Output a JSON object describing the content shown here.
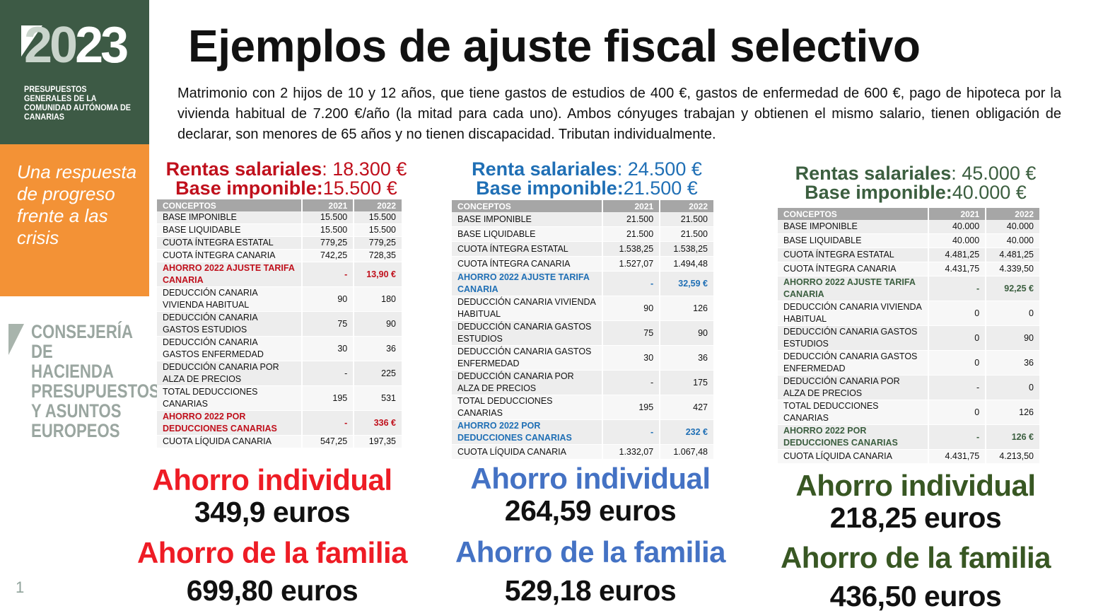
{
  "sidebar": {
    "logo_year_a": "20",
    "logo_year_b": "23",
    "logo_text": "PRESUPUESTOS GENERALES DE LA COMUNIDAD AUTÓNOMA DE CANARIAS",
    "tagline": "Una respuesta de progreso frente a las crisis",
    "department": "CONSEJERÍA DE HACIENDA PRESUPUESTOS Y ASUNTOS EUROPEOS",
    "page_number": "1"
  },
  "title": "Ejemplos de ajuste fiscal selectivo",
  "intro": "Matrimonio con 2 hijos de 10 y 12 años, que tiene gastos de estudios de 400 €, gastos de enfermedad de 600 €, pago de hipoteca por la vivienda habitual de 7.200 €/año (la mitad para cada uno). Ambos cónyuges trabajan y obtienen el mismo salario, tienen obligación de declarar, son menores de 65 años y no tienen discapacidad. Tributan individualmente.",
  "colors": {
    "red": "#c0101c",
    "bright_red": "#ee1c25",
    "blue": "#1f6fb5",
    "mid_blue": "#4472c4",
    "green": "#3b5e3f",
    "dark_green": "#385723"
  },
  "columns": [
    {
      "rent_label": "Rentas salariales",
      "rent_value": ": 18.300 €",
      "base_label": "Base imponible:",
      "base_value": "15.500 €",
      "headers": [
        "CONCEPTOS",
        "2021",
        "2022"
      ],
      "rows": [
        [
          "BASE IMPONIBLE",
          "15.500",
          "15.500"
        ],
        [
          "BASE LIQUIDABLE",
          "15.500",
          "15.500"
        ],
        [
          "CUOTA ÍNTEGRA ESTATAL",
          "779,25",
          "779,25"
        ],
        [
          "CUOTA ÍNTEGRA CANARIA",
          "742,25",
          "728,35"
        ],
        [
          "AHORRO 2022 AJUSTE TARIFA CANARIA",
          "-",
          "13,90 €"
        ],
        [
          "DEDUCCIÓN CANARIA VIVIENDA HABITUAL",
          "90",
          "180"
        ],
        [
          "DEDUCCIÓN CANARIA GASTOS ESTUDIOS",
          "75",
          "90"
        ],
        [
          "DEDUCCIÓN CANARIA GASTOS ENFERMEDAD",
          "30",
          "36"
        ],
        [
          "DEDUCCIÓN CANARIA POR ALZA DE PRECIOS",
          "-",
          "225"
        ],
        [
          "TOTAL DEDUCCIONES CANARIAS",
          "195",
          "531"
        ],
        [
          "AHORRO 2022 POR DEDUCCIONES CANARIAS",
          "-",
          "336 €"
        ],
        [
          "CUOTA LÍQUIDA CANARIA",
          "547,25",
          "197,35"
        ]
      ],
      "ind_label": "Ahorro individual",
      "ind_value": "349,9 euros",
      "fam_label": "Ahorro de la familia",
      "fam_value": "699,80 euros"
    },
    {
      "rent_label": "Renta salariales",
      "rent_value": ": 24.500 €",
      "base_label": "Base imponible:",
      "base_value": "21.500 €",
      "headers": [
        "CONCEPTOS",
        "2021",
        "2022"
      ],
      "rows": [
        [
          "BASE IMPONIBLE",
          "21.500",
          "21.500"
        ],
        [
          "BASE LIQUIDABLE",
          "21.500",
          "21.500"
        ],
        [
          "CUOTA ÍNTEGRA ESTATAL",
          "1.538,25",
          "1.538,25"
        ],
        [
          "CUOTA ÍNTEGRA CANARIA",
          "1.527,07",
          "1.494,48"
        ],
        [
          "AHORRO 2022 AJUSTE TARIFA CANARIA",
          "-",
          "32,59 €"
        ],
        [
          "DEDUCCIÓN CANARIA VIVIENDA HABITUAL",
          "90",
          "126"
        ],
        [
          "DEDUCCIÓN CANARIA GASTOS ESTUDIOS",
          "75",
          "90"
        ],
        [
          "DEDUCCIÓN CANARIA GASTOS ENFERMEDAD",
          "30",
          "36"
        ],
        [
          "DEDUCCIÓN CANARIA POR ALZA DE PRECIOS",
          "-",
          "175"
        ],
        [
          "TOTAL DEDUCCIONES CANARIAS",
          "195",
          "427"
        ],
        [
          "AHORRO 2022 POR DEDUCCIONES CANARIAS",
          "-",
          "232 €"
        ],
        [
          "CUOTA LÍQUIDA CANARIA",
          "1.332,07",
          "1.067,48"
        ]
      ],
      "ind_label": "Ahorro individual",
      "ind_value": "264,59 euros",
      "fam_label": "Ahorro de la familia",
      "fam_value": "529,18 euros"
    },
    {
      "rent_label": "Rentas salariales",
      "rent_value": ": 45.000 €",
      "base_label": "Base imponible:",
      "base_value": "40.000 €",
      "headers": [
        "CONCEPTOS",
        "2021",
        "2022"
      ],
      "rows": [
        [
          "BASE IMPONIBLE",
          "40.000",
          "40.000"
        ],
        [
          "BASE LIQUIDABLE",
          "40.000",
          "40.000"
        ],
        [
          "CUOTA ÍNTEGRA ESTATAL",
          "4.481,25",
          "4.481,25"
        ],
        [
          "CUOTA ÍNTEGRA CANARIA",
          "4.431,75",
          "4.339,50"
        ],
        [
          "AHORRO 2022 AJUSTE TARIFA CANARIA",
          "-",
          "92,25 €"
        ],
        [
          "DEDUCCIÓN CANARIA VIVIENDA HABITUAL",
          "0",
          "0"
        ],
        [
          "DEDUCCIÓN CANARIA GASTOS ESTUDIOS",
          "0",
          "90"
        ],
        [
          "DEDUCCIÓN CANARIA GASTOS ENFERMEDAD",
          "0",
          "36"
        ],
        [
          "DEDUCCIÓN CANARIA POR ALZA DE PRECIOS",
          "-",
          "0"
        ],
        [
          "TOTAL DEDUCCIONES CANARIAS",
          "0",
          "126"
        ],
        [
          "AHORRO 2022 POR DEDUCCIONES CANARIAS",
          "-",
          "126 €"
        ],
        [
          "CUOTA LÍQUIDA CANARIA",
          "4.431,75",
          "4.213,50"
        ]
      ],
      "ind_label": "Ahorro individual",
      "ind_value": "218,25 euros",
      "fam_label": "Ahorro de la familia",
      "fam_value": "436,50 euros"
    }
  ]
}
